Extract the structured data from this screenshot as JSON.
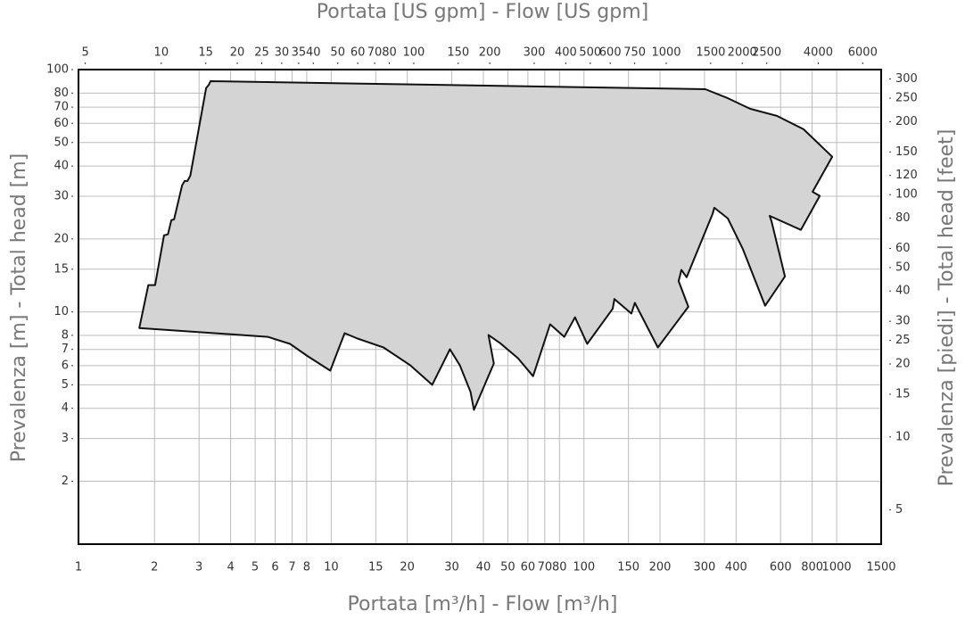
{
  "chart_data": {
    "type": "area",
    "title": "Portata [US gpm] - Flow [US gpm]",
    "x_label": "Portata [m³/h] - Flow [m³/h]",
    "y_label": "Prevalenza [m] - Total head [m]",
    "y2_label": "Prevalenza [piedi] - Total head [feet]",
    "xscale": "log",
    "yscale": "log",
    "grid": true,
    "color": "#d4d4d4",
    "edge_color": "#111111",
    "xlim": [
      1,
      1500
    ],
    "ylim": [
      1.1,
      100
    ],
    "x2lim": [
      4.7,
      7100
    ],
    "y2lim": [
      3.61,
      328
    ],
    "xticks": [
      1,
      2,
      3,
      4,
      5,
      6,
      7,
      8,
      10,
      15,
      20,
      30,
      40,
      50,
      60,
      70,
      80,
      100,
      150,
      200,
      300,
      400,
      600,
      800,
      1000,
      1500
    ],
    "x2ticks": [
      5,
      10,
      15,
      20,
      25,
      30,
      35,
      40,
      50,
      60,
      70,
      80,
      100,
      150,
      200,
      300,
      400,
      500,
      600,
      750,
      1000,
      1500,
      2000,
      2500,
      4000,
      6000
    ],
    "yticks": [
      2,
      3,
      4,
      5,
      6,
      7,
      8,
      10,
      15,
      20,
      30,
      40,
      50,
      60,
      70,
      80,
      100
    ],
    "y2ticks": [
      5,
      10,
      15,
      20,
      25,
      30,
      40,
      50,
      60,
      80,
      100,
      120,
      150,
      200,
      250,
      300
    ],
    "x": [
      1.74,
      1.89,
      2.01,
      2.18,
      2.26,
      2.33,
      2.39,
      2.57,
      2.63,
      2.7,
      2.77,
      3.2,
      3.28,
      3.33,
      302,
      371,
      454,
      580,
      740,
      960,
      803,
      857,
      722,
      543,
      552,
      624,
      521,
      426,
      371,
      328,
      323,
      255,
      243,
      237,
      259,
      196,
      159,
      154,
      132,
      130,
      103,
      92.2,
      83.6,
      73.5,
      62.9,
      54.8,
      46.6,
      41.9,
      44.0,
      36.7,
      35.6,
      32.3,
      29.5,
      25.1,
      20.6,
      16.1,
      12.7,
      11.3,
      9.91,
      8.09,
      6.87,
      5.61
    ],
    "values": [
      8.58,
      12.9,
      12.9,
      20.7,
      20.9,
      23.9,
      24.1,
      33.3,
      34.7,
      34.7,
      36.5,
      83.8,
      86.6,
      89.6,
      83.0,
      76.2,
      68.9,
      64.4,
      56.7,
      43.7,
      31.3,
      30.1,
      21.8,
      24.9,
      23.7,
      14.0,
      10.6,
      18.1,
      24.3,
      26.9,
      25.4,
      13.9,
      14.9,
      13.4,
      10.5,
      7.13,
      10.9,
      9.84,
      11.3,
      10.3,
      7.38,
      9.5,
      7.89,
      8.89,
      5.43,
      6.44,
      7.43,
      8.02,
      6.12,
      3.94,
      4.67,
      6.01,
      7.01,
      5.0,
      6.01,
      7.13,
      7.76,
      8.17,
      5.72,
      6.55,
      7.38,
      7.89
    ]
  }
}
